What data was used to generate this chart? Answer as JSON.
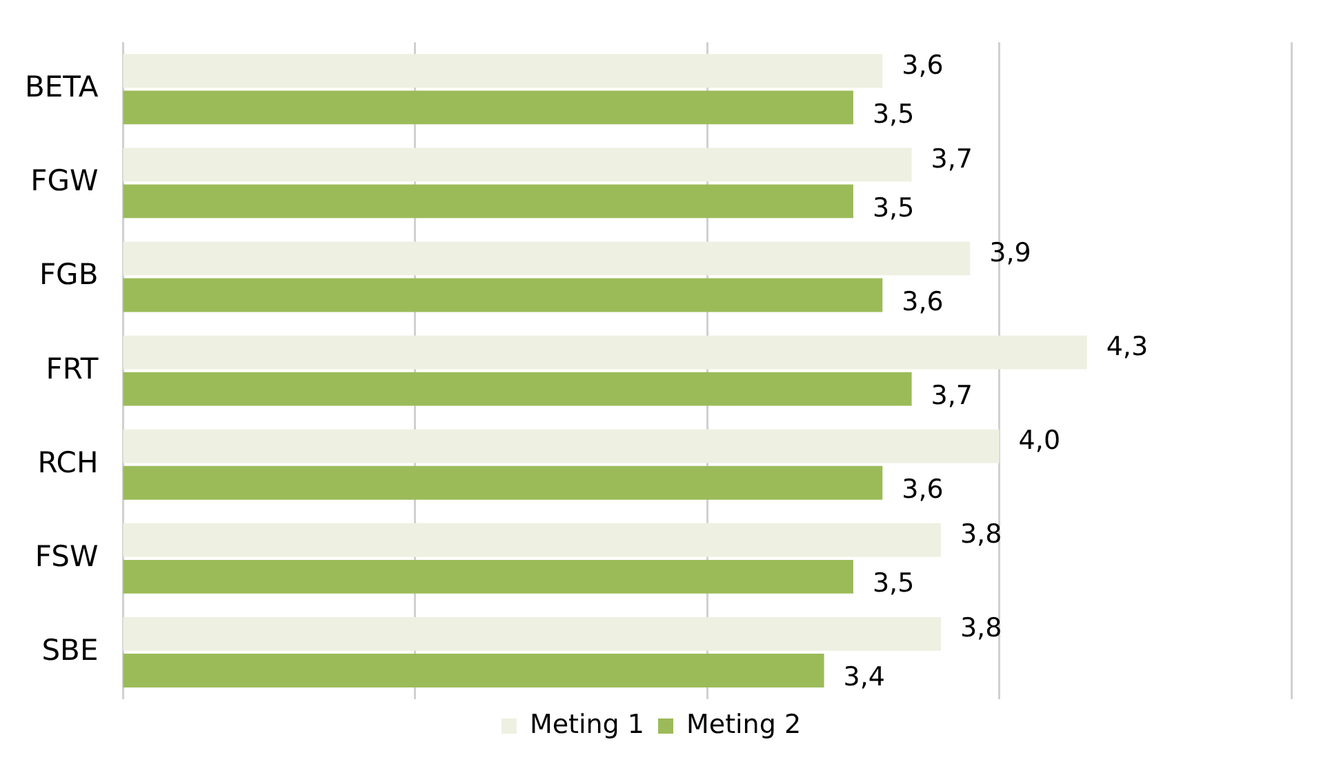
{
  "chart_data": {
    "type": "bar",
    "orientation": "horizontal",
    "categories": [
      "BETA",
      "FGW",
      "FGB",
      "FRT",
      "RCH",
      "FSW",
      "SBE"
    ],
    "series": [
      {
        "name": "Meting 1",
        "color": "#eef0e1",
        "values": [
          3.6,
          3.7,
          3.9,
          4.3,
          4.0,
          3.8,
          3.8
        ],
        "value_labels": [
          "3,6",
          "3,7",
          "3,9",
          "4,3",
          "4,0",
          "3,8",
          "3,8"
        ]
      },
      {
        "name": "Meting 2",
        "color": "#9bbb59",
        "values": [
          3.5,
          3.5,
          3.6,
          3.7,
          3.6,
          3.5,
          3.4
        ],
        "value_labels": [
          "3,5",
          "3,5",
          "3,6",
          "3,7",
          "3,6",
          "3,5",
          "3,4"
        ]
      }
    ],
    "xlim": [
      1,
      5
    ],
    "xticks": [
      {
        "value": 1,
        "label": null
      },
      {
        "value": 2,
        "label": null
      },
      {
        "value": 3,
        "label": null
      },
      {
        "value": 4,
        "label": null
      },
      {
        "value": 5,
        "label": null
      }
    ],
    "tick_labels": "y",
    "grid": "x",
    "legend": "bottom"
  }
}
